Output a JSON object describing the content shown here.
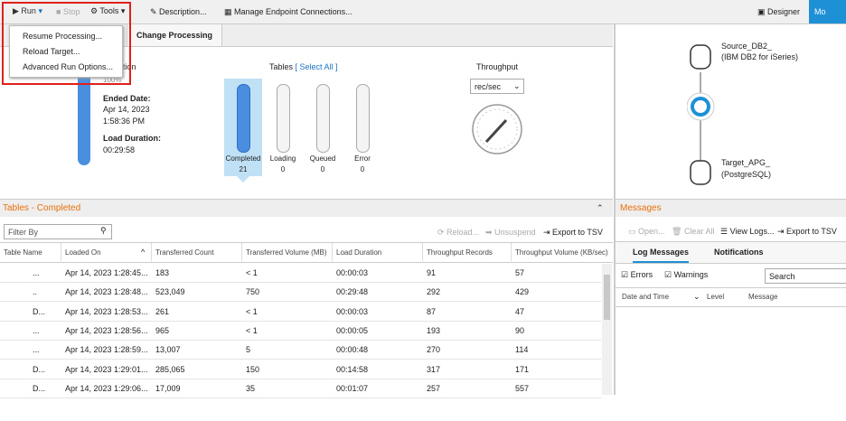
{
  "toolbar": {
    "run": "Run",
    "stop": "Stop",
    "tools": "Tools",
    "description": "Description...",
    "manage": "Manage Endpoint Connections...",
    "designer": "Designer",
    "monitor": "Mo"
  },
  "run_menu": [
    "Resume Processing...",
    "Reload Target...",
    "Advanced Run Options..."
  ],
  "tabs": {
    "change_processing": "Change Processing"
  },
  "summary": {
    "heading": "etion",
    "percent": "100%",
    "ended_label": "Ended Date:",
    "ended_date": "Apr 14, 2023",
    "ended_time": "1:58:36 PM",
    "duration_label": "Load Duration:",
    "duration": "00:29:58"
  },
  "tables_status": {
    "title": "Tables",
    "select_all": "[ Select All ]",
    "bars": [
      {
        "label": "Completed",
        "count": 21
      },
      {
        "label": "Loading",
        "count": 0
      },
      {
        "label": "Queued",
        "count": 0
      },
      {
        "label": "Error",
        "count": 0
      }
    ]
  },
  "throughput": {
    "title": "Throughput",
    "unit": "rec/sec"
  },
  "tables_section": {
    "title": "Tables - Completed",
    "filter": "Filter By",
    "reload": "Reload...",
    "unsuspend": "Unsuspend",
    "export": "Export to TSV",
    "columns": [
      "Table Name",
      "Loaded On",
      "Transferred Count",
      "Transferred Volume (MB)",
      "Load Duration",
      "Throughput Records",
      "Throughput Volume (KB/sec)"
    ],
    "rows": [
      [
        "...",
        "Apr 14, 2023 1:28:45...",
        "183",
        "< 1",
        "00:00:03",
        "91",
        "57"
      ],
      [
        "..",
        "Apr 14, 2023 1:28:48...",
        "523,049",
        "750",
        "00:29:48",
        "292",
        "429"
      ],
      [
        "D...",
        "Apr 14, 2023 1:28:53...",
        "261",
        "< 1",
        "00:00:03",
        "87",
        "47"
      ],
      [
        "...",
        "Apr 14, 2023 1:28:56...",
        "965",
        "< 1",
        "00:00:05",
        "193",
        "90"
      ],
      [
        "...",
        "Apr 14, 2023 1:28:59...",
        "13,007",
        "5",
        "00:00:48",
        "270",
        "114"
      ],
      [
        "D...",
        "Apr 14, 2023 1:29:01...",
        "285,065",
        "150",
        "00:14:58",
        "317",
        "171"
      ],
      [
        "D...",
        "Apr 14, 2023 1:29:06...",
        "17,009",
        "35",
        "00:01:07",
        "257",
        "557"
      ]
    ]
  },
  "diagram": {
    "source_name": "Source_DB2_",
    "source_type": "(IBM DB2 for iSeries)",
    "target_name": "Target_APG_",
    "target_type": "(PostgreSQL)"
  },
  "messages": {
    "title": "Messages",
    "open": "Open...",
    "clear": "Clear All",
    "view_logs": "View Logs...",
    "export": "Export to TSV",
    "tab_log": "Log Messages",
    "tab_notifications": "Notifications",
    "errors": "Errors",
    "warnings": "Warnings",
    "search": "Search",
    "columns": [
      "Date and Time",
      "Level",
      "Message"
    ]
  }
}
